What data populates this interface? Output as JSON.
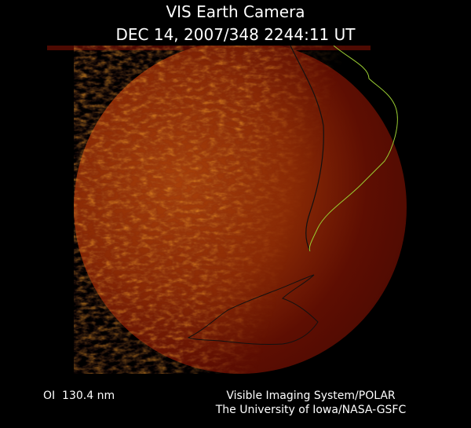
{
  "title": "VIS Earth Camera",
  "timestamp": "DEC 14, 2007/348 2244:11 UT",
  "filter": "OI  130.4 nm",
  "credits": [
    "Visible Imaging System/POLAR",
    "The University of Iowa/NASA-GSFC"
  ]
}
